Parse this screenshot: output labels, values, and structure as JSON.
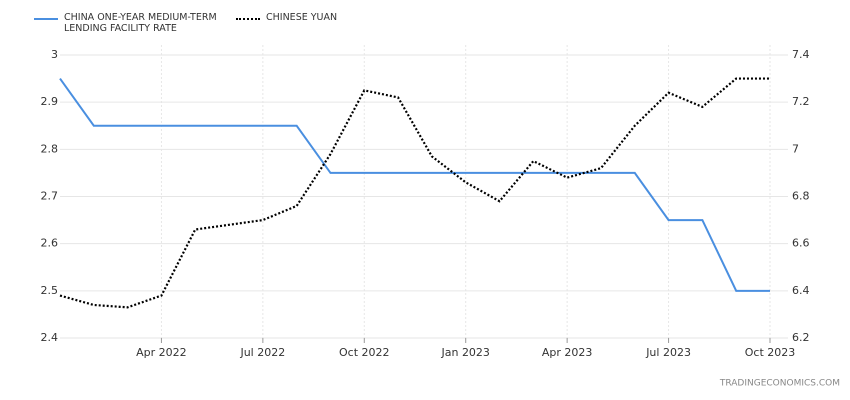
{
  "chart_data": {
    "type": "line",
    "x": [
      "2022-01",
      "2022-02",
      "2022-03",
      "2022-04",
      "2022-05",
      "2022-06",
      "2022-07",
      "2022-08",
      "2022-09",
      "2022-10",
      "2022-11",
      "2022-12",
      "2023-01",
      "2023-02",
      "2023-03",
      "2023-04",
      "2023-05",
      "2023-06",
      "2023-07",
      "2023-08",
      "2023-09",
      "2023-10"
    ],
    "series": [
      {
        "name": "CHINA ONE-YEAR MEDIUM-TERM LENDING FACILITY RATE",
        "color": "#4a8fe0",
        "axis": "y",
        "values": [
          2.95,
          2.85,
          2.85,
          2.85,
          2.85,
          2.85,
          2.85,
          2.85,
          2.75,
          2.75,
          2.75,
          2.75,
          2.75,
          2.75,
          2.75,
          2.75,
          2.75,
          2.75,
          2.65,
          2.65,
          2.5,
          2.5
        ]
      },
      {
        "name": "CHINESE YUAN",
        "color": "#000000",
        "axis": "y2",
        "dashed": true,
        "values": [
          6.38,
          6.34,
          6.33,
          6.38,
          6.66,
          6.68,
          6.7,
          6.76,
          6.98,
          7.25,
          7.22,
          6.97,
          6.86,
          6.78,
          6.95,
          6.88,
          6.92,
          7.1,
          7.24,
          7.18,
          7.3,
          7.3
        ]
      }
    ],
    "xlim": [
      "2022-01",
      "2023-10"
    ],
    "xticks": [
      {
        "value": "2022-04",
        "label": "Apr 2022"
      },
      {
        "value": "2022-07",
        "label": "Jul 2022"
      },
      {
        "value": "2022-10",
        "label": "Oct 2022"
      },
      {
        "value": "2023-01",
        "label": "Jan 2023"
      },
      {
        "value": "2023-04",
        "label": "Apr 2023"
      },
      {
        "value": "2023-07",
        "label": "Jul 2023"
      },
      {
        "value": "2023-10",
        "label": "Oct 2023"
      }
    ],
    "ylim": [
      2.4,
      3.0
    ],
    "yticks": [
      2.4,
      2.5,
      2.6,
      2.7,
      2.8,
      2.9,
      3
    ],
    "y2lim": [
      6.2,
      7.4
    ],
    "y2ticks": [
      6.2,
      6.4,
      6.6,
      6.8,
      7,
      7.2,
      7.4
    ],
    "grid": true,
    "source": "TRADINGECONOMICS.COM"
  }
}
